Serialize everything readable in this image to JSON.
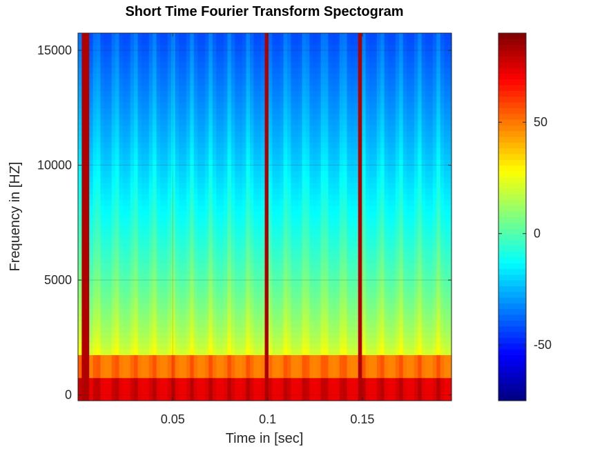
{
  "chart_data": {
    "type": "heatmap",
    "title": "Short Time Fourier Transform Spectogram",
    "xlabel": "Time in [sec]",
    "ylabel": "Frequency in [HZ]",
    "xlim": [
      0.0,
      0.197
    ],
    "ylim": [
      -250,
      15750
    ],
    "x_ticks": [
      0.05,
      0.1,
      0.15
    ],
    "x_tick_labels": [
      "0.05",
      "0.1",
      "0.15"
    ],
    "y_ticks": [
      0,
      5000,
      10000,
      15000
    ],
    "y_tick_labels": [
      "0",
      "5000",
      "10000",
      "15000"
    ],
    "grid": true,
    "colormap": "jet",
    "colorbar": {
      "range": [
        -75,
        90
      ],
      "ticks": [
        -50,
        0,
        50
      ],
      "tick_labels": [
        "-50",
        "0",
        "50"
      ]
    },
    "features": {
      "broadband_impulse_times_sec": [
        0.004,
        0.099,
        0.149
      ],
      "pulse_period_sec": 0.01,
      "low_band_top_hz": 800,
      "harmonic_band_hz": [
        800,
        1750
      ],
      "high_freq_level_db": -30,
      "low_freq_level_db": 72
    }
  }
}
